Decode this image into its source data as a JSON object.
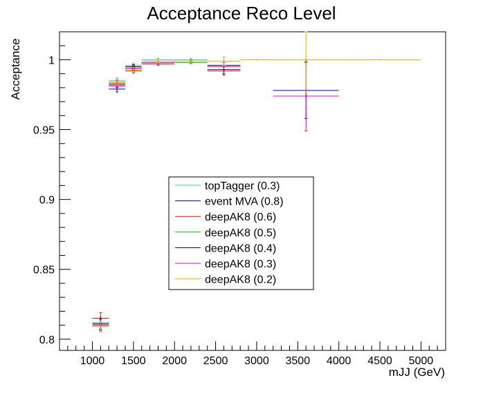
{
  "chart_data": {
    "type": "scatter",
    "title": "Acceptance Reco Level",
    "xlabel": "mJJ (GeV)",
    "ylabel": "Acceptance",
    "xlim": [
      600,
      5300
    ],
    "ylim": [
      0.792,
      1.02
    ],
    "x_ticks": [
      1000,
      1500,
      2000,
      2500,
      3000,
      3500,
      4000,
      4500,
      5000
    ],
    "x_tick_labels": [
      "1000",
      "1500",
      "2000",
      "2500",
      "3000",
      "3500",
      "4000",
      "4500",
      "5000"
    ],
    "y_ticks": [
      0.8,
      0.85,
      0.9,
      0.95,
      1.0
    ],
    "y_tick_labels": [
      "0.8",
      "0.85",
      "0.9",
      "0.95",
      "1"
    ],
    "legend_position": "center",
    "grid": false,
    "series": [
      {
        "name": "topTagger (0.3)",
        "color": "#33cccc",
        "points": [
          {
            "x": 1100,
            "xl": 1000,
            "xh": 1200,
            "y": 0.812,
            "err": 0.004
          },
          {
            "x": 1300,
            "xl": 1200,
            "xh": 1400,
            "y": 0.985,
            "err": 0.002
          },
          {
            "x": 1500,
            "xl": 1400,
            "xh": 1600,
            "y": 0.996,
            "err": 0.0015
          },
          {
            "x": 1800,
            "xl": 1600,
            "xh": 2000,
            "y": 1.0,
            "err": 0.001
          },
          {
            "x": 2200,
            "xl": 2000,
            "xh": 2400,
            "y": 1.0,
            "err": 0.0008
          }
        ]
      },
      {
        "name": "event MVA (0.8)",
        "color": "#0000aa",
        "points": [
          {
            "x": 1100,
            "xl": 1000,
            "xh": 1200,
            "y": 0.81,
            "err": 0.004
          },
          {
            "x": 1300,
            "xl": 1200,
            "xh": 1400,
            "y": 0.979,
            "err": 0.002
          },
          {
            "x": 1500,
            "xl": 1400,
            "xh": 1600,
            "y": 0.994,
            "err": 0.0015
          },
          {
            "x": 1800,
            "xl": 1600,
            "xh": 2000,
            "y": 0.998,
            "err": 0.001
          },
          {
            "x": 2200,
            "xl": 2000,
            "xh": 2400,
            "y": 0.999,
            "err": 0.0008
          },
          {
            "x": 2600,
            "xl": 2400,
            "xh": 2800,
            "y": 0.993,
            "err": 0.003
          },
          {
            "x": 3600,
            "xl": 3200,
            "xh": 4000,
            "y": 0.978,
            "err": 0.02
          }
        ]
      },
      {
        "name": "deepAK8 (0.6)",
        "color": "#ff0000",
        "points": [
          {
            "x": 1100,
            "xl": 1000,
            "xh": 1200,
            "y": 0.815,
            "err": 0.004
          },
          {
            "x": 1300,
            "xl": 1200,
            "xh": 1400,
            "y": 0.983,
            "err": 0.002
          },
          {
            "x": 1500,
            "xl": 1400,
            "xh": 1600,
            "y": 0.992,
            "err": 0.0015
          },
          {
            "x": 1800,
            "xl": 1600,
            "xh": 2000,
            "y": 0.997,
            "err": 0.001
          },
          {
            "x": 2200,
            "xl": 2000,
            "xh": 2400,
            "y": 0.999,
            "err": 0.0008
          },
          {
            "x": 2600,
            "xl": 2400,
            "xh": 2800,
            "y": 0.992,
            "err": 0.003
          }
        ]
      },
      {
        "name": "deepAK8 (0.5)",
        "color": "#00cc00",
        "points": [
          {
            "x": 1100,
            "xl": 1000,
            "xh": 1200,
            "y": 0.811,
            "err": 0.004
          },
          {
            "x": 1300,
            "xl": 1200,
            "xh": 1400,
            "y": 0.984,
            "err": 0.002
          },
          {
            "x": 1500,
            "xl": 1400,
            "xh": 1600,
            "y": 0.993,
            "err": 0.0015
          },
          {
            "x": 1800,
            "xl": 1600,
            "xh": 2000,
            "y": 0.999,
            "err": 0.001
          },
          {
            "x": 2200,
            "xl": 2000,
            "xh": 2400,
            "y": 0.998,
            "err": 0.0008
          },
          {
            "x": 2600,
            "xl": 2400,
            "xh": 2800,
            "y": 0.996,
            "err": 0.003
          }
        ]
      },
      {
        "name": "deepAK8 (0.4)",
        "color": "#000000",
        "points": [
          {
            "x": 1100,
            "xl": 1000,
            "xh": 1200,
            "y": 0.811,
            "err": 0.004
          },
          {
            "x": 1300,
            "xl": 1200,
            "xh": 1400,
            "y": 0.982,
            "err": 0.002
          },
          {
            "x": 1500,
            "xl": 1400,
            "xh": 1600,
            "y": 0.995,
            "err": 0.0015
          },
          {
            "x": 1800,
            "xl": 1600,
            "xh": 2000,
            "y": 0.998,
            "err": 0.001
          },
          {
            "x": 2200,
            "xl": 2000,
            "xh": 2400,
            "y": 0.999,
            "err": 0.0008
          },
          {
            "x": 2600,
            "xl": 2400,
            "xh": 2800,
            "y": 0.996,
            "err": 0.003
          },
          {
            "x": 3600,
            "xl": 3200,
            "xh": 4000,
            "y": 1.0,
            "err": 0.0
          }
        ]
      },
      {
        "name": "deepAK8 (0.3)",
        "color": "#dd00dd",
        "points": [
          {
            "x": 1100,
            "xl": 1000,
            "xh": 1200,
            "y": 0.81,
            "err": 0.004
          },
          {
            "x": 1300,
            "xl": 1200,
            "xh": 1400,
            "y": 0.981,
            "err": 0.002
          },
          {
            "x": 1500,
            "xl": 1400,
            "xh": 1600,
            "y": 0.994,
            "err": 0.0015
          },
          {
            "x": 1800,
            "xl": 1600,
            "xh": 2000,
            "y": 0.998,
            "err": 0.001
          },
          {
            "x": 2200,
            "xl": 2000,
            "xh": 2400,
            "y": 0.999,
            "err": 0.0008
          },
          {
            "x": 2600,
            "xl": 2400,
            "xh": 2800,
            "y": 0.995,
            "err": 0.003
          },
          {
            "x": 3600,
            "xl": 3200,
            "xh": 4000,
            "y": 0.974,
            "err": 0.025
          }
        ]
      },
      {
        "name": "deepAK8 (0.2)",
        "color": "#ffaa00",
        "points": [
          {
            "x": 1100,
            "xl": 1000,
            "xh": 1200,
            "y": 0.809,
            "err": 0.004
          },
          {
            "x": 1300,
            "xl": 1200,
            "xh": 1400,
            "y": 0.984,
            "err": 0.002
          },
          {
            "x": 1500,
            "xl": 1400,
            "xh": 1600,
            "y": 0.993,
            "err": 0.0015
          },
          {
            "x": 1800,
            "xl": 1600,
            "xh": 2000,
            "y": 0.999,
            "err": 0.001
          },
          {
            "x": 2200,
            "xl": 2000,
            "xh": 2400,
            "y": 0.999,
            "err": 0.0008
          },
          {
            "x": 2600,
            "xl": 2400,
            "xh": 2800,
            "y": 0.999,
            "err": 0.003
          },
          {
            "x": 3000,
            "xl": 2800,
            "xh": 3200,
            "y": 1.0,
            "err": 0.0
          },
          {
            "x": 3600,
            "xl": 3200,
            "xh": 4000,
            "y": 1.0,
            "err": 0.024
          },
          {
            "x": 4500,
            "xl": 4000,
            "xh": 5000,
            "y": 1.0,
            "err": 0.0
          }
        ]
      }
    ]
  }
}
